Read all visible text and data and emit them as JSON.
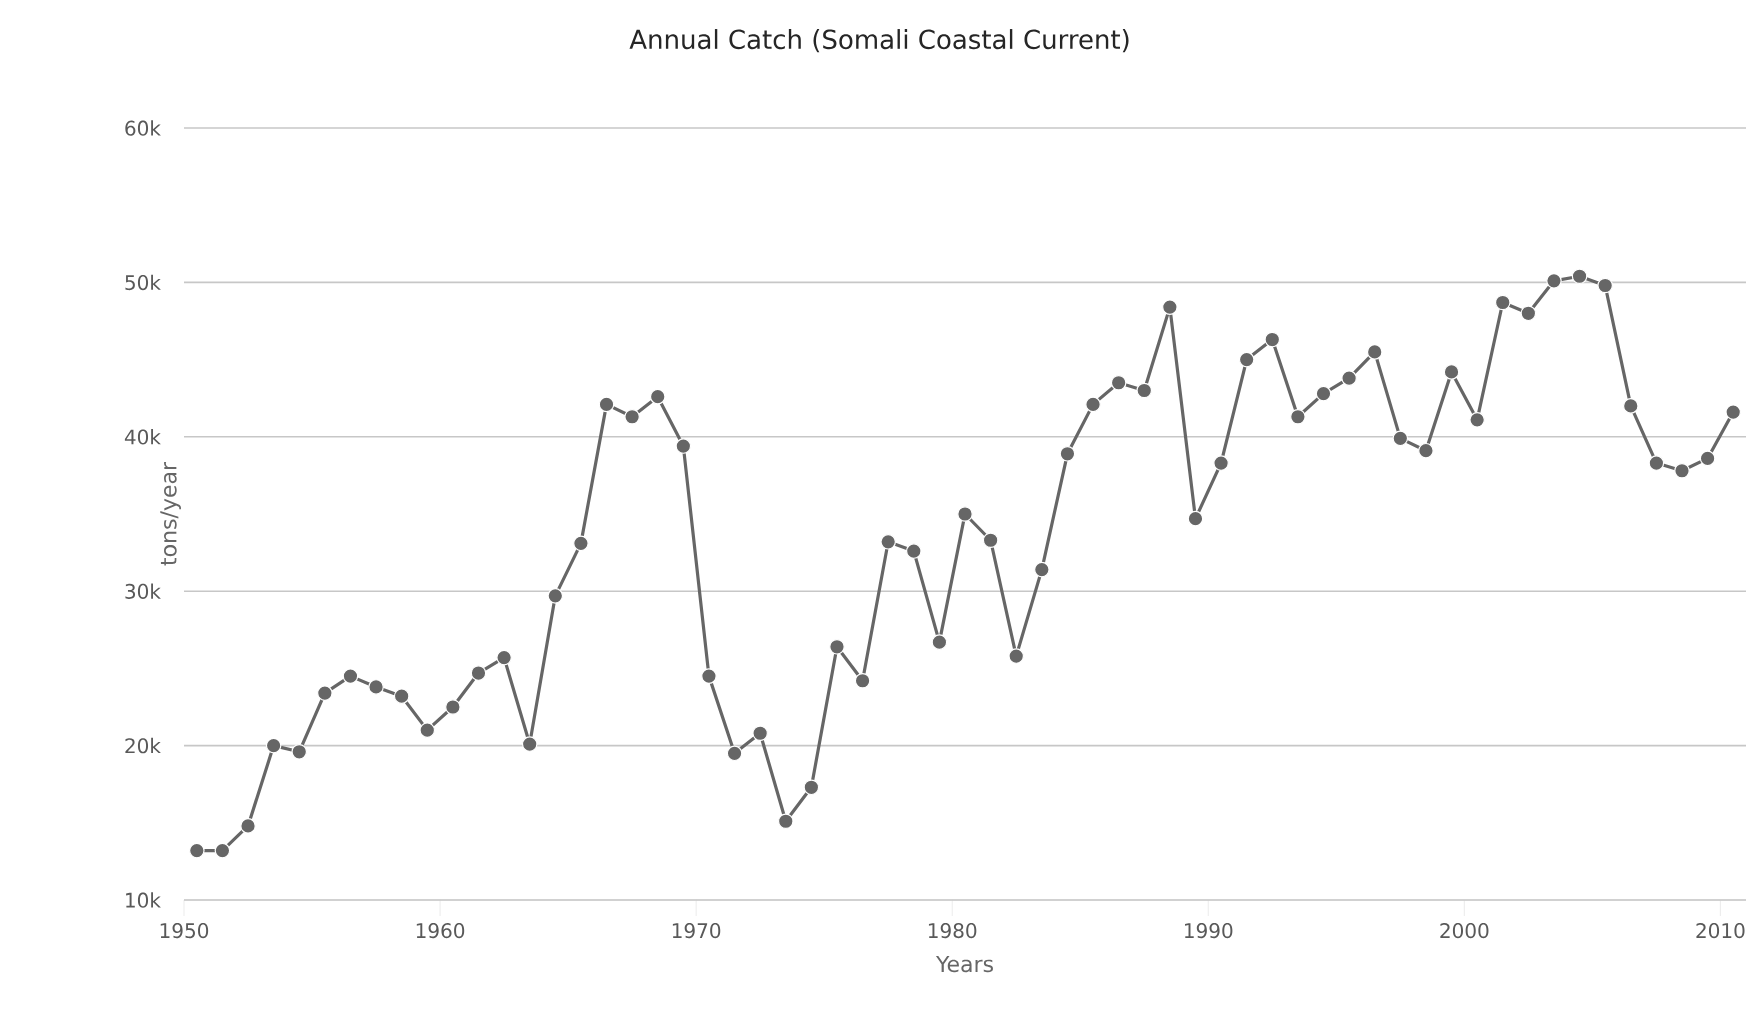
{
  "chart_data": {
    "type": "line",
    "title": "Annual Catch (Somali Coastal Current)",
    "xlabel": "Years",
    "ylabel": "tons/year",
    "x": [
      1950.5,
      1951.5,
      1952.5,
      1953.5,
      1954.5,
      1955.5,
      1956.5,
      1957.5,
      1958.5,
      1959.5,
      1960.5,
      1961.5,
      1962.5,
      1963.5,
      1964.5,
      1965.5,
      1966.5,
      1967.5,
      1968.5,
      1969.5,
      1970.5,
      1971.5,
      1972.5,
      1973.5,
      1974.5,
      1975.5,
      1976.5,
      1977.5,
      1978.5,
      1979.5,
      1980.5,
      1981.5,
      1982.5,
      1983.5,
      1984.5,
      1985.5,
      1986.5,
      1987.5,
      1988.5,
      1989.5,
      1990.5,
      1991.5,
      1992.5,
      1993.5,
      1994.5,
      1995.5,
      1996.5,
      1997.5,
      1998.5,
      1999.5,
      2000.5,
      2001.5,
      2002.5,
      2003.5,
      2004.5,
      2005.5,
      2006.5,
      2007.5,
      2008.5,
      2009.5,
      2010.5
    ],
    "series": [
      {
        "color": "#666666",
        "values": [
          13200,
          13200,
          14800,
          20000,
          19600,
          23400,
          24500,
          23800,
          23200,
          21000,
          22500,
          24700,
          25700,
          20100,
          29700,
          33100,
          42100,
          41300,
          42600,
          39400,
          24500,
          19500,
          20800,
          15100,
          17300,
          26400,
          24200,
          33200,
          32600,
          26700,
          35000,
          33300,
          25800,
          31400,
          38900,
          42100,
          43500,
          43000,
          48400,
          34700,
          38300,
          45000,
          46300,
          41300,
          42800,
          43800,
          45500,
          39900,
          39100,
          44200,
          41100,
          48700,
          48000,
          50100,
          50400,
          49800,
          42000,
          38300,
          37800,
          38600,
          41600
        ]
      }
    ],
    "xlim": [
      1950,
      2011
    ],
    "ylim": [
      10000,
      60000
    ],
    "xticks": [
      1950,
      1960,
      1970,
      1980,
      1990,
      2000,
      2010
    ],
    "yticks": [
      {
        "value": 10000,
        "label": "10k"
      },
      {
        "value": 20000,
        "label": "20k"
      },
      {
        "value": 30000,
        "label": "30k"
      },
      {
        "value": 40000,
        "label": "40k"
      },
      {
        "value": 50000,
        "label": "50k"
      },
      {
        "value": 60000,
        "label": "60k"
      }
    ],
    "grid": "y",
    "marker": "circle",
    "line_style": "solid"
  }
}
